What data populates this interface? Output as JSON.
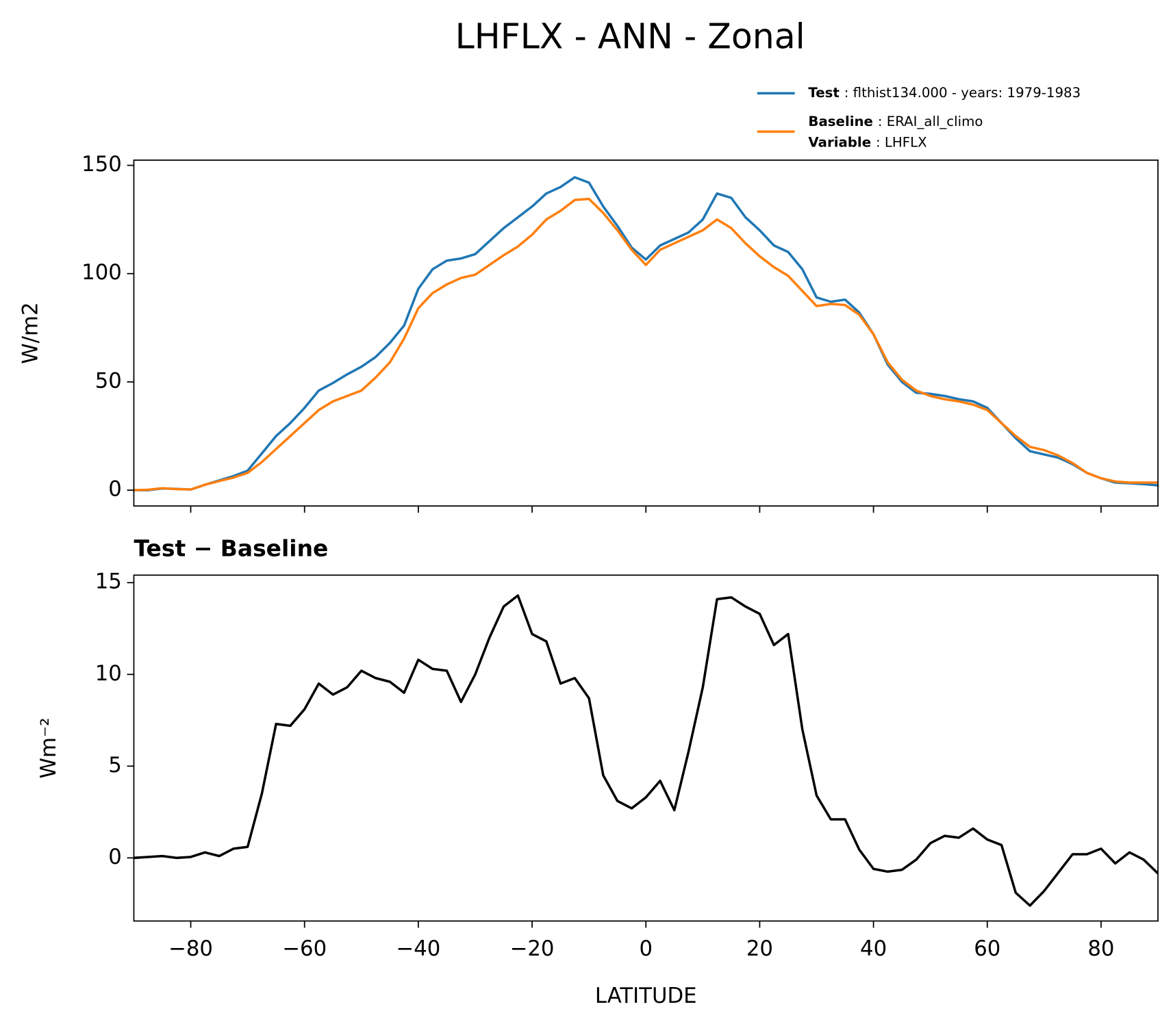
{
  "chart_data": [
    {
      "type": "line",
      "title": "LHFLX - ANN - Zonal",
      "ylabel": "W/m2",
      "legend": "upper right",
      "legend_note": "Variable : LHFLX",
      "x": [
        -90,
        -87.5,
        -85,
        -82.5,
        -80,
        -77.5,
        -75,
        -72.5,
        -70,
        -67.5,
        -65,
        -62.5,
        -60,
        -57.5,
        -55,
        -52.5,
        -50,
        -47.5,
        -45,
        -42.5,
        -40,
        -37.5,
        -35,
        -32.5,
        -30,
        -27.5,
        -25,
        -22.5,
        -20,
        -17.5,
        -15,
        -12.5,
        -10,
        -7.5,
        -5,
        -2.5,
        0,
        2.5,
        5,
        7.5,
        10,
        12.5,
        15,
        17.5,
        20,
        22.5,
        25,
        27.5,
        30,
        32.5,
        35,
        37.5,
        40,
        42.5,
        45,
        47.5,
        50,
        52.5,
        55,
        57.5,
        60,
        62.5,
        65,
        67.5,
        70,
        72.5,
        75,
        77.5,
        80,
        82.5,
        85,
        87.5,
        90
      ],
      "series": [
        {
          "name": "Test : flthist134.000 - years: 1979-1983",
          "color": "#1f77b4",
          "values": [
            0,
            0,
            0.8,
            0.6,
            0.3,
            2.5,
            4.5,
            6.5,
            9,
            17,
            25,
            31,
            38,
            46,
            49.5,
            53.5,
            57,
            61.5,
            68,
            76,
            93,
            102,
            106,
            107,
            109,
            115,
            121,
            126,
            131,
            137,
            140,
            144.5,
            142,
            131,
            122,
            112,
            106.5,
            113,
            116,
            119,
            125,
            137,
            135,
            126,
            120,
            113,
            110,
            102,
            89,
            87,
            88,
            82,
            72,
            58,
            50,
            45,
            44.5,
            43.5,
            42,
            41,
            38,
            31,
            24,
            18,
            16.5,
            15,
            12,
            8,
            5.5,
            3.5,
            3.2,
            2.8,
            2.2
          ]
        },
        {
          "name": "Baseline : ERAI_all_climo",
          "color": "#ff7f0e",
          "values": [
            0,
            0.2,
            0.9,
            0.5,
            0.3,
            2.5,
            4.2,
            5.8,
            8,
            13,
            19,
            25,
            31,
            37,
            41,
            43.5,
            46,
            52,
            59,
            70,
            84,
            91,
            95,
            98,
            99.5,
            104,
            108.5,
            112.5,
            118,
            125,
            129,
            134,
            134.5,
            128,
            120,
            111,
            104,
            111,
            114,
            117,
            120,
            125,
            121,
            114,
            108,
            103,
            99,
            92,
            85,
            86,
            85.5,
            81,
            72,
            59,
            51,
            46,
            43.5,
            42,
            41,
            39.5,
            37,
            31,
            25,
            20,
            18.5,
            16,
            12.5,
            8,
            5.5,
            4,
            3.5,
            3.5,
            3.5
          ]
        }
      ],
      "xlim": [
        -90,
        90
      ],
      "xticks": [
        -80,
        -60,
        -40,
        -20,
        0,
        20,
        40,
        60,
        80
      ],
      "xticklabels": false,
      "ylim": [
        -7.3,
        152.4
      ],
      "yticks": [
        0,
        50,
        100,
        150
      ]
    },
    {
      "type": "line",
      "title": "Test − Baseline",
      "ylabel": "Wm⁻²",
      "xlabel": "LATITUDE",
      "x": [
        -90,
        -87.5,
        -85,
        -82.5,
        -80,
        -77.5,
        -75,
        -72.5,
        -70,
        -67.5,
        -65,
        -62.5,
        -60,
        -57.5,
        -55,
        -52.5,
        -50,
        -47.5,
        -45,
        -42.5,
        -40,
        -37.5,
        -35,
        -32.5,
        -30,
        -27.5,
        -25,
        -22.5,
        -20,
        -17.5,
        -15,
        -12.5,
        -10,
        -7.5,
        -5,
        -2.5,
        0,
        2.5,
        5,
        7.5,
        10,
        12.5,
        15,
        17.5,
        20,
        22.5,
        25,
        27.5,
        30,
        32.5,
        35,
        37.5,
        40,
        42.5,
        45,
        47.5,
        50,
        52.5,
        55,
        57.5,
        60,
        62.5,
        65,
        67.5,
        70,
        72.5,
        75,
        77.5,
        80,
        82.5,
        85,
        87.5,
        90
      ],
      "series": [
        {
          "color": "#000000",
          "values": [
            0,
            0.05,
            0.1,
            0,
            0.05,
            0.3,
            0.1,
            0.5,
            0.6,
            3.5,
            7.3,
            7.2,
            8.1,
            9.5,
            8.9,
            9.3,
            10.2,
            9.8,
            9.6,
            9,
            10.8,
            10.3,
            10.2,
            8.5,
            10,
            12,
            13.7,
            14.3,
            12.2,
            11.8,
            9.5,
            9.8,
            8.7,
            4.5,
            3.1,
            2.7,
            3.3,
            4.2,
            2.6,
            5.8,
            9.3,
            14.1,
            14.2,
            13.7,
            13.3,
            11.6,
            12.2,
            7,
            3.4,
            2.1,
            2.1,
            0.45,
            -0.6,
            -0.75,
            -0.65,
            -0.1,
            0.8,
            1.2,
            1.1,
            1.6,
            1,
            0.7,
            -1.9,
            -2.6,
            -1.8,
            -0.8,
            0.2,
            0.2,
            0.5,
            -0.3,
            0.3,
            -0.1,
            -0.85
          ]
        }
      ],
      "xlim": [
        -90,
        90
      ],
      "xticks": [
        {
          "value": -80,
          "label": "−80"
        },
        {
          "value": -60,
          "label": "−60"
        },
        {
          "value": -40,
          "label": "−40"
        },
        {
          "value": -20,
          "label": "−20"
        },
        0,
        20,
        40,
        60,
        80
      ],
      "xticklabels": true,
      "ylim": [
        -3.44,
        15.41
      ],
      "yticks": [
        0,
        5,
        10,
        15
      ]
    }
  ]
}
